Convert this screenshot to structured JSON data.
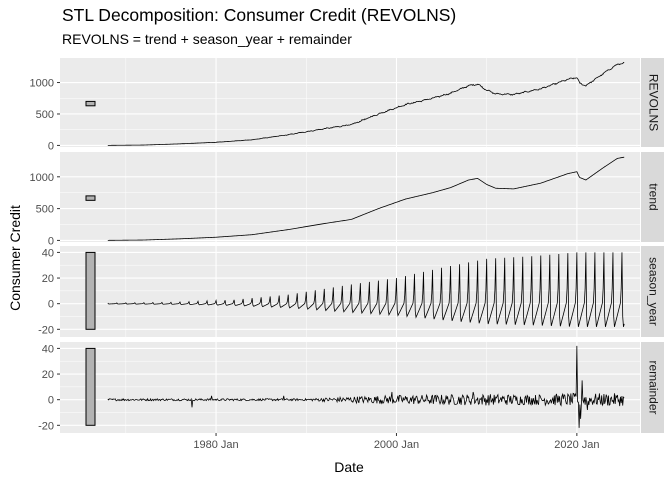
{
  "chart_data": {
    "type": "line",
    "title": "STL Decomposition: Consumer Credit (REVOLNS)",
    "subtitle": "REVOLNS = trend + season_year + remainder",
    "xlabel": "Date",
    "ylabel": "Consumer Credit",
    "x_ticks": [
      "1980 Jan",
      "2000 Jan",
      "2020 Jan"
    ],
    "x_tick_years": [
      1980,
      2000,
      2020
    ],
    "xlim": [
      1962.7,
      2027.0
    ],
    "x_range": [
      1968.0,
      2025.3
    ],
    "grid": true,
    "panels": [
      {
        "name": "REVOLNS",
        "ylim": [
          -25,
          1390
        ],
        "y_ticks": [
          0,
          500,
          1000
        ],
        "y_tick_labels": [
          "0",
          "500",
          "1000"
        ],
        "scale_bar": [
          630,
          700
        ],
        "knots": [
          [
            1968,
            1
          ],
          [
            1972,
            6
          ],
          [
            1976,
            25
          ],
          [
            1980,
            50
          ],
          [
            1984,
            90
          ],
          [
            1988,
            170
          ],
          [
            1992,
            265
          ],
          [
            1995,
            330
          ],
          [
            1998,
            500
          ],
          [
            2001,
            650
          ],
          [
            2004,
            750
          ],
          [
            2006,
            830
          ],
          [
            2008,
            950
          ],
          [
            2009,
            975
          ],
          [
            2010,
            880
          ],
          [
            2011,
            820
          ],
          [
            2013,
            810
          ],
          [
            2016,
            900
          ],
          [
            2019,
            1050
          ],
          [
            2020,
            1080
          ],
          [
            2020.3,
            990
          ],
          [
            2021,
            950
          ],
          [
            2023,
            1150
          ],
          [
            2024.5,
            1290
          ],
          [
            2025.3,
            1310
          ]
        ],
        "noise": 8
      },
      {
        "name": "trend",
        "ylim": [
          -25,
          1390
        ],
        "y_ticks": [
          0,
          500,
          1000
        ],
        "y_tick_labels": [
          "0",
          "500",
          "1000"
        ],
        "scale_bar": [
          630,
          700
        ],
        "knots": [
          [
            1968,
            1
          ],
          [
            1972,
            6
          ],
          [
            1976,
            25
          ],
          [
            1980,
            50
          ],
          [
            1984,
            90
          ],
          [
            1988,
            170
          ],
          [
            1992,
            265
          ],
          [
            1995,
            330
          ],
          [
            1998,
            500
          ],
          [
            2001,
            650
          ],
          [
            2004,
            750
          ],
          [
            2006,
            830
          ],
          [
            2008,
            950
          ],
          [
            2009,
            975
          ],
          [
            2010,
            880
          ],
          [
            2011,
            820
          ],
          [
            2013,
            810
          ],
          [
            2016,
            900
          ],
          [
            2019,
            1050
          ],
          [
            2020,
            1080
          ],
          [
            2020.3,
            990
          ],
          [
            2021,
            950
          ],
          [
            2023,
            1150
          ],
          [
            2024.5,
            1290
          ],
          [
            2025.3,
            1310
          ]
        ],
        "noise": 0
      },
      {
        "name": "season_year",
        "ylim": [
          -26,
          45
        ],
        "y_ticks": [
          -20,
          0,
          20,
          40
        ],
        "y_tick_labels": [
          "-20",
          "0",
          "20",
          "40"
        ],
        "scale_bar": [
          -20,
          40
        ],
        "amp_knots": [
          [
            1968,
            0.5
          ],
          [
            1975,
            1
          ],
          [
            1982,
            3
          ],
          [
            1988,
            7
          ],
          [
            1995,
            15
          ],
          [
            2000,
            20
          ],
          [
            2005,
            28
          ],
          [
            2010,
            35
          ],
          [
            2015,
            37
          ],
          [
            2020,
            40
          ],
          [
            2025.3,
            40
          ]
        ]
      },
      {
        "name": "remainder",
        "ylim": [
          -26,
          45
        ],
        "y_ticks": [
          -20,
          0,
          20,
          40
        ],
        "y_tick_labels": [
          "-20",
          "0",
          "20",
          "40"
        ],
        "scale_bar": [
          -20,
          40
        ],
        "noise_knots": [
          [
            1968,
            0.8
          ],
          [
            1990,
            0.8
          ],
          [
            1995,
            2.5
          ],
          [
            2000,
            3.5
          ],
          [
            2005,
            4
          ],
          [
            2010,
            4.5
          ],
          [
            2015,
            4
          ],
          [
            2019,
            5
          ],
          [
            2025.3,
            5
          ]
        ],
        "spikes": [
          [
            1977.3,
            -6
          ],
          [
            1979.5,
            3
          ],
          [
            1987.5,
            3
          ],
          [
            1999.5,
            6
          ],
          [
            2008.5,
            6
          ],
          [
            2020.0,
            42
          ],
          [
            2020.25,
            -22
          ],
          [
            2020.4,
            -15
          ],
          [
            2020.6,
            15
          ],
          [
            2021.2,
            -8
          ]
        ]
      }
    ]
  },
  "colors": {
    "panel_bg": "#ebebeb",
    "grid_major": "#ffffff",
    "strip_bg": "#d9d9d9",
    "line": "#000000",
    "scale_bar_fill": "#b3b3b3"
  }
}
